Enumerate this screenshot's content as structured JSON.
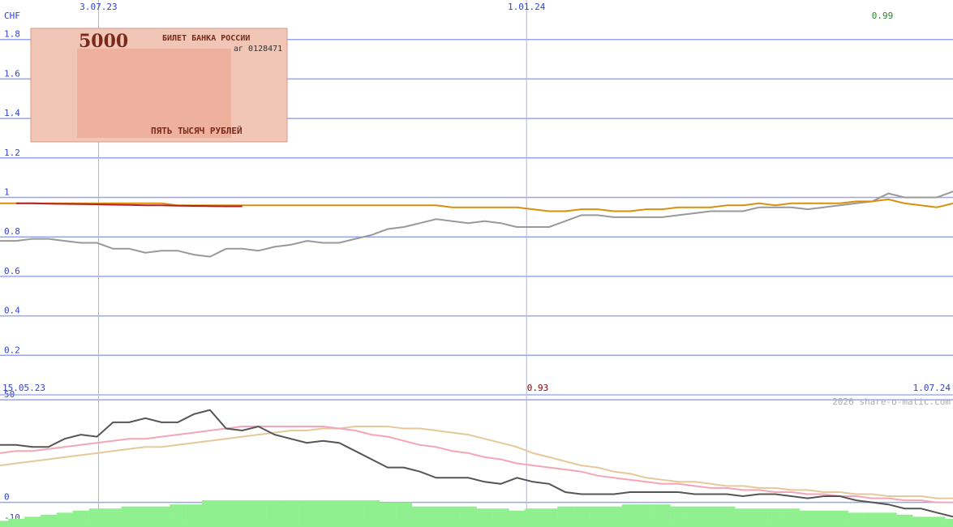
{
  "chart_data": [
    {
      "type": "line",
      "unit_label": "CHF",
      "x": [
        0,
        1,
        2,
        3,
        4,
        5,
        6,
        7,
        8,
        9,
        10,
        11,
        12,
        13,
        14,
        15,
        16,
        17,
        18,
        19,
        20,
        21,
        22,
        23,
        24,
        25,
        26,
        27,
        28,
        29,
        30,
        31,
        32,
        33,
        34,
        35,
        36,
        37,
        38,
        39,
        40,
        41,
        42,
        43,
        44,
        45,
        46,
        47,
        48,
        49,
        50,
        51,
        52,
        53,
        54,
        55,
        56,
        57,
        58,
        59
      ],
      "xlim": [
        0,
        59
      ],
      "xticks": [
        {
          "value": 6.1,
          "label": "3.07.23"
        },
        {
          "value": 32.6,
          "label": "1.01.24"
        }
      ],
      "range_labels": {
        "start": "15.05.23",
        "end": "1.07.24"
      },
      "ylim": [
        0,
        2
      ],
      "yticks": [
        0.2,
        0.4,
        0.6,
        0.8,
        1,
        1.2,
        1.4,
        1.6,
        1.8
      ],
      "grid": true,
      "annotations": [
        {
          "text": "0.99",
          "color": "#228822"
        }
      ],
      "series": [
        {
          "color": "#999999",
          "values": [
            0.78,
            0.78,
            0.79,
            0.79,
            0.78,
            0.77,
            0.77,
            0.74,
            0.74,
            0.72,
            0.73,
            0.73,
            0.71,
            0.7,
            0.74,
            0.74,
            0.73,
            0.75,
            0.76,
            0.78,
            0.77,
            0.77,
            0.79,
            0.81,
            0.84,
            0.85,
            0.87,
            0.89,
            0.88,
            0.87,
            0.88,
            0.87,
            0.85,
            0.85,
            0.85,
            0.88,
            0.91,
            0.91,
            0.9,
            0.9,
            0.9,
            0.9,
            0.91,
            0.92,
            0.93,
            0.93,
            0.93,
            0.95,
            0.95,
            0.95,
            0.94,
            0.95,
            0.96,
            0.97,
            0.98,
            1.02,
            1.0,
            1.0,
            1.0,
            1.03
          ]
        },
        {
          "color": "#d9900f",
          "values": [
            0.97,
            0.97,
            0.97,
            0.97,
            0.97,
            0.97,
            0.97,
            0.97,
            0.97,
            0.97,
            0.97,
            0.96,
            0.96,
            0.96,
            0.96,
            0.96,
            0.96,
            0.96,
            0.96,
            0.96,
            0.96,
            0.96,
            0.96,
            0.96,
            0.96,
            0.96,
            0.96,
            0.96,
            0.95,
            0.95,
            0.95,
            0.95,
            0.95,
            0.94,
            0.93,
            0.93,
            0.94,
            0.94,
            0.93,
            0.93,
            0.94,
            0.94,
            0.95,
            0.95,
            0.95,
            0.96,
            0.96,
            0.97,
            0.96,
            0.97,
            0.97,
            0.97,
            0.97,
            0.98,
            0.98,
            0.99,
            0.97,
            0.96,
            0.95,
            0.97
          ]
        },
        {
          "color": "#b22222",
          "values": [
            null,
            0.97,
            0.97,
            0.968,
            0.967,
            0.966,
            0.965,
            0.963,
            0.962,
            0.96,
            0.96,
            0.958,
            0.957,
            0.956,
            0.955,
            0.955,
            null,
            null,
            null,
            null,
            null,
            null,
            null,
            null,
            null,
            null,
            null,
            null,
            null,
            null,
            null,
            null,
            null,
            null,
            null,
            null,
            null,
            null,
            null,
            null,
            null,
            null,
            null,
            null,
            null,
            null,
            null,
            null,
            null,
            null,
            null,
            null,
            null,
            null,
            null,
            null,
            null,
            null,
            null,
            null
          ]
        }
      ]
    },
    {
      "type": "line",
      "x": [
        0,
        1,
        2,
        3,
        4,
        5,
        6,
        7,
        8,
        9,
        10,
        11,
        12,
        13,
        14,
        15,
        16,
        17,
        18,
        19,
        20,
        21,
        22,
        23,
        24,
        25,
        26,
        27,
        28,
        29,
        30,
        31,
        32,
        33,
        34,
        35,
        36,
        37,
        38,
        39,
        40,
        41,
        42,
        43,
        44,
        45,
        46,
        47,
        48,
        49,
        50,
        51,
        52,
        53,
        54,
        55,
        56,
        57,
        58,
        59
      ],
      "xlim": [
        0,
        59
      ],
      "ylim": [
        -12,
        52
      ],
      "yticks": [
        -10,
        0,
        50
      ],
      "annotations": [
        {
          "text": "0.93",
          "color": "#880000"
        }
      ],
      "watermark": "2026 share-o-matic.com",
      "series": [
        {
          "type": "bar",
          "color": "#90f090",
          "values": [
            -9,
            -8,
            -7,
            -6,
            -5,
            -4,
            -3,
            -3,
            -2,
            -2,
            -2,
            -1,
            -1,
            1,
            1,
            1,
            1,
            1,
            1,
            1,
            1,
            1,
            1,
            1,
            0,
            0,
            -2,
            -2,
            -2,
            -2,
            -3,
            -3,
            -4,
            -3,
            -3,
            -2,
            -2,
            -2,
            -2,
            -1,
            -1,
            -1,
            -2,
            -2,
            -2,
            -2,
            -3,
            -3,
            -3,
            -3,
            -4,
            -4,
            -4,
            -5,
            -5,
            -5,
            -6,
            -7,
            -7,
            -8
          ]
        },
        {
          "color": "#e6c89a",
          "values": [
            18,
            19,
            20,
            21,
            22,
            23,
            24,
            25,
            26,
            27,
            27,
            28,
            29,
            30,
            31,
            32,
            33,
            34,
            35,
            35,
            36,
            36,
            37,
            37,
            37,
            36,
            36,
            35,
            34,
            33,
            31,
            29,
            27,
            24,
            22,
            20,
            18,
            17,
            15,
            14,
            12,
            11,
            10,
            10,
            9,
            8,
            8,
            7,
            7,
            6,
            6,
            5,
            5,
            4,
            4,
            3,
            3,
            3,
            2,
            2
          ]
        },
        {
          "color": "#f4a6b8",
          "values": [
            24,
            25,
            25,
            26,
            27,
            28,
            29,
            30,
            31,
            31,
            32,
            33,
            34,
            35,
            36,
            37,
            37,
            37,
            37,
            37,
            37,
            36,
            35,
            33,
            32,
            30,
            28,
            27,
            25,
            24,
            22,
            21,
            19,
            18,
            17,
            16,
            15,
            13,
            12,
            11,
            10,
            9,
            9,
            8,
            7,
            7,
            6,
            6,
            5,
            5,
            4,
            4,
            3,
            3,
            2,
            2,
            1,
            1,
            0,
            0
          ]
        },
        {
          "color": "#555555",
          "values": [
            28,
            28,
            27,
            27,
            31,
            33,
            32,
            39,
            39,
            41,
            39,
            39,
            43,
            45,
            36,
            35,
            37,
            33,
            31,
            29,
            30,
            29,
            25,
            21,
            17,
            17,
            15,
            12,
            12,
            12,
            10,
            9,
            12,
            10,
            9,
            5,
            4,
            4,
            4,
            5,
            5,
            5,
            5,
            4,
            4,
            4,
            3,
            4,
            4,
            3,
            2,
            3,
            3,
            1,
            0,
            -1,
            -3,
            -3,
            -5,
            -7
          ]
        }
      ]
    }
  ],
  "banknote": {
    "denomination": "5000",
    "issuer": "БИЛЕТ БАНКА РОССИИ",
    "serial": "аг 0128471",
    "words": "ПЯТЬ ТЫСЯЧ РУБЛЕЙ"
  }
}
